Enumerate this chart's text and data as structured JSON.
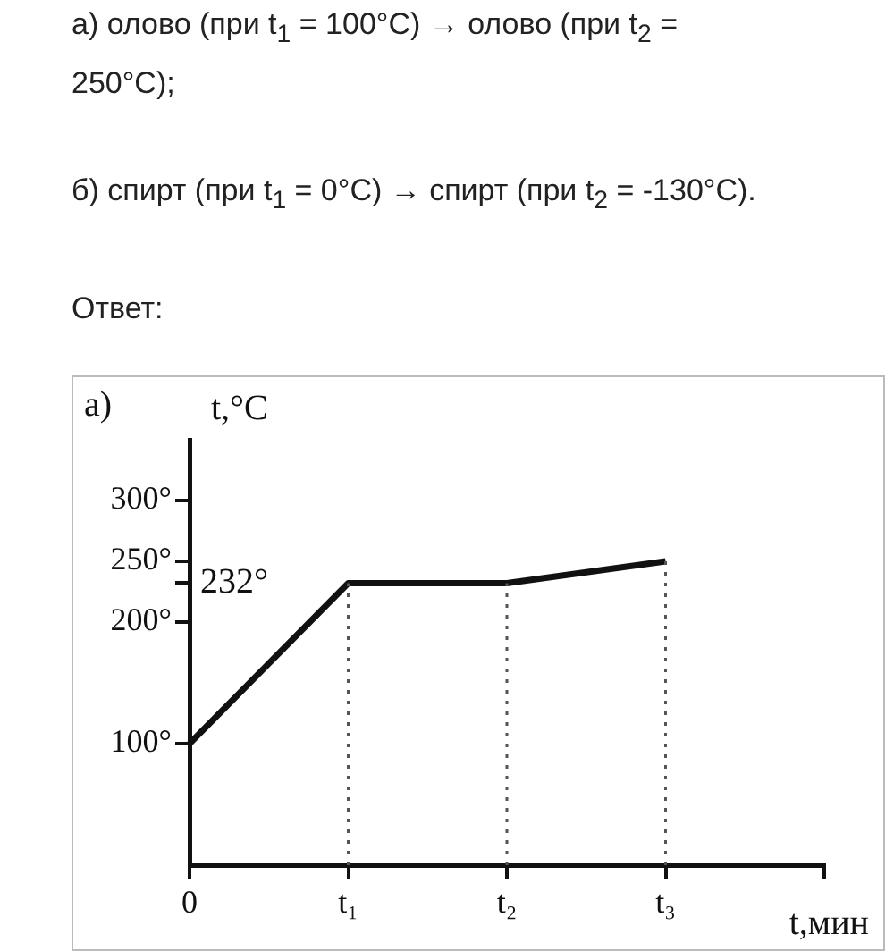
{
  "chart_data": {
    "type": "line",
    "xlabel": "t,мин",
    "ylabel": "t,°C",
    "annotations": [
      "а) олово (при t$_{1}$ = 100°C) → олово (при t$_{2}$ = 250°C);",
      "б) спирт (при t$_{1}$ = 0°C) → спирт (при t$_{2}$ = -130°C).",
      "Ответ:",
      "а)",
      "232°"
    ],
    "categories": [
      "0",
      "t₁",
      "t₂",
      "t₃",
      null
    ],
    "series": [
      {
        "color": "#111111",
        "values": [
          100,
          232,
          232,
          250,
          null
        ]
      }
    ],
    "ylim": [
      0,
      350
    ],
    "yticks": [
      {
        "value": 100,
        "label": "100°"
      },
      {
        "value": 200,
        "label": "200°"
      },
      {
        "value": 232,
        "label": null
      },
      {
        "value": 250,
        "label": "250°"
      },
      {
        "value": 300,
        "label": "300°"
      }
    ],
    "ref_lines": [
      {
        "axis": "x",
        "value": "t₁",
        "label": null,
        "line_style": "dotted",
        "color": "#555555"
      },
      {
        "axis": "x",
        "value": "t₂",
        "label": null,
        "line_style": "dotted",
        "color": "#555555"
      },
      {
        "axis": "x",
        "value": "t₃",
        "label": null,
        "line_style": "dotted",
        "color": "#555555"
      }
    ],
    "grid": false,
    "legend": false,
    "marker": "none",
    "line_style": "solid"
  }
}
